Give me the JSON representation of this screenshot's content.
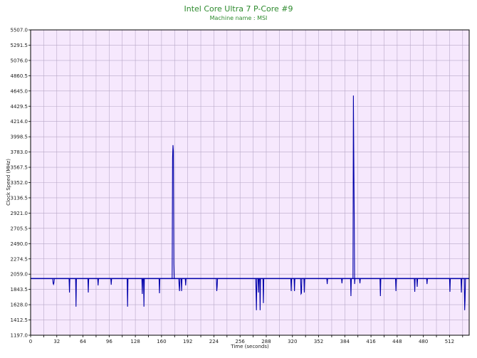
{
  "colors": {
    "title": "#2e8b2e",
    "plot_background": "#f6e8fd",
    "grid": "#b8a8c8",
    "series": "#0000aa",
    "axis": "#000000"
  },
  "chart_data": {
    "type": "line",
    "title": "Intel Core Ultra 7 P-Core #9",
    "subtitle": "Machine name : MSI",
    "xlabel": "Time (seconds)",
    "ylabel": "Clock Speed (MHz)",
    "xlim": [
      0,
      536
    ],
    "ylim": [
      1197.0,
      5507.0
    ],
    "grid": true,
    "x_ticks": [
      "0",
      "32",
      "64",
      "96",
      "128",
      "160",
      "192",
      "224",
      "256",
      "288",
      "320",
      "352",
      "384",
      "416",
      "448",
      "480",
      "512"
    ],
    "y_ticks": [
      "1197.0",
      "1412.5",
      "1628.0",
      "1843.5",
      "2059.0",
      "2274.5",
      "2490.0",
      "2705.5",
      "2921.0",
      "3136.5",
      "3352.0",
      "3567.5",
      "3783.0",
      "3998.5",
      "4214.0",
      "4429.5",
      "4645.0",
      "4860.5",
      "5076.0",
      "5291.5",
      "5507.0"
    ],
    "series": [
      {
        "baseline": 1997,
        "points": [
          [
            0,
            1997
          ],
          [
            27,
            1997
          ],
          [
            27.5,
            1930
          ],
          [
            28,
            1915
          ],
          [
            28.5,
            1935
          ],
          [
            29,
            1997
          ],
          [
            47,
            1997
          ],
          [
            47.5,
            1800
          ],
          [
            48,
            1997
          ],
          [
            55,
            1997
          ],
          [
            55.5,
            1600
          ],
          [
            56,
            1997
          ],
          [
            70,
            1997
          ],
          [
            70.5,
            1800
          ],
          [
            71,
            1997
          ],
          [
            82,
            1997
          ],
          [
            82.5,
            1900
          ],
          [
            83,
            1997
          ],
          [
            98,
            1997
          ],
          [
            98.5,
            1910
          ],
          [
            99,
            1997
          ],
          [
            118,
            1997
          ],
          [
            118.5,
            1600
          ],
          [
            119,
            1997
          ],
          [
            136,
            1997
          ],
          [
            136.5,
            1780
          ],
          [
            137,
            1997
          ],
          [
            138,
            1997
          ],
          [
            138.5,
            1600
          ],
          [
            139,
            1997
          ],
          [
            157,
            1997
          ],
          [
            157.5,
            1790
          ],
          [
            158,
            1997
          ],
          [
            173,
            1997
          ],
          [
            173.5,
            3700
          ],
          [
            174,
            3880
          ],
          [
            174.5,
            3800
          ],
          [
            175,
            2200
          ],
          [
            175.5,
            1997
          ],
          [
            181,
            1997
          ],
          [
            181.5,
            1900
          ],
          [
            182,
            1820
          ],
          [
            182.5,
            1997
          ],
          [
            184,
            1997
          ],
          [
            184.5,
            1820
          ],
          [
            185,
            1997
          ],
          [
            189,
            1997
          ],
          [
            189.5,
            1900
          ],
          [
            190,
            1997
          ],
          [
            227,
            1997
          ],
          [
            227.5,
            1820
          ],
          [
            228,
            1880
          ],
          [
            228.5,
            1997
          ],
          [
            275,
            1997
          ],
          [
            275.5,
            1830
          ],
          [
            276,
            1550
          ],
          [
            276.5,
            1997
          ],
          [
            278,
            1997
          ],
          [
            278.5,
            1800
          ],
          [
            279,
            1997
          ],
          [
            280,
            1997
          ],
          [
            280.5,
            1550
          ],
          [
            281,
            1997
          ],
          [
            284,
            1997
          ],
          [
            284.5,
            1650
          ],
          [
            285,
            1997
          ],
          [
            318,
            1997
          ],
          [
            318.5,
            1820
          ],
          [
            319,
            1997
          ],
          [
            322,
            1997
          ],
          [
            322.5,
            1820
          ],
          [
            323,
            1997
          ],
          [
            330,
            1997
          ],
          [
            330.5,
            1780
          ],
          [
            331,
            1790
          ],
          [
            331.5,
            1997
          ],
          [
            334,
            1997
          ],
          [
            334.5,
            1800
          ],
          [
            335,
            1997
          ],
          [
            362,
            1997
          ],
          [
            362.5,
            1920
          ],
          [
            363,
            1997
          ],
          [
            380,
            1997
          ],
          [
            380.5,
            1930
          ],
          [
            381,
            1997
          ],
          [
            391,
            1997
          ],
          [
            391.5,
            1750
          ],
          [
            392,
            1997
          ],
          [
            394,
            1997
          ],
          [
            394.5,
            4580
          ],
          [
            395,
            3700
          ],
          [
            395.5,
            2900
          ],
          [
            396,
            1920
          ],
          [
            396.5,
            1997
          ],
          [
            402,
            1997
          ],
          [
            402.5,
            1930
          ],
          [
            403,
            1997
          ],
          [
            427,
            1997
          ],
          [
            427.5,
            1750
          ],
          [
            428,
            1997
          ],
          [
            446,
            1997
          ],
          [
            446.5,
            1820
          ],
          [
            447,
            1997
          ],
          [
            469,
            1997
          ],
          [
            469.5,
            1810
          ],
          [
            470,
            1997
          ],
          [
            472,
            1997
          ],
          [
            472.5,
            1880
          ],
          [
            473,
            1997
          ],
          [
            484,
            1997
          ],
          [
            484.5,
            1920
          ],
          [
            485,
            1997
          ],
          [
            512,
            1997
          ],
          [
            512.5,
            1810
          ],
          [
            513,
            1997
          ],
          [
            526,
            1997
          ],
          [
            526.5,
            1800
          ],
          [
            527,
            1997
          ],
          [
            530,
            1997
          ],
          [
            530.5,
            1550
          ],
          [
            531,
            1700
          ],
          [
            531.5,
            1997
          ],
          [
            536,
            1997
          ]
        ]
      }
    ]
  }
}
